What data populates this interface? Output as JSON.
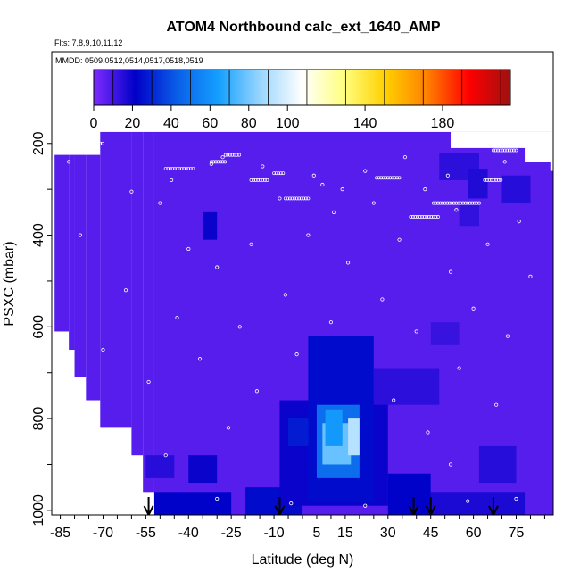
{
  "chart_data": {
    "type": "heatmap",
    "title": "ATOM4 Northbound calc_ext_1640_AMP",
    "subtitle_flights": "Flts: 7,8,9,10,11,12",
    "subtitle_dates": "MMDD: 0509,0512,0514,0517,0518,0519",
    "xlabel": "Latitude (deg N)",
    "ylabel": "PSXC (mbar)",
    "xlim": [
      -88,
      88
    ],
    "ylim": [
      1010,
      0
    ],
    "x_ticks": [
      -85,
      -70,
      -55,
      -40,
      -25,
      -10,
      5,
      15,
      30,
      45,
      60,
      75
    ],
    "x_minor_step": 5,
    "y_ticks": [
      200,
      400,
      600,
      800,
      1000
    ],
    "colorbar": {
      "range": [
        0,
        215
      ],
      "ticks": [
        0,
        20,
        40,
        60,
        80,
        100,
        140,
        180
      ],
      "colors": [
        "#7f2bff",
        "#0000c8",
        "#0a5ee8",
        "#14a0ff",
        "#9ad6ff",
        "#ffffff",
        "#ffff80",
        "#ffd000",
        "#ff8000",
        "#ff0000",
        "#a01010"
      ]
    },
    "background_value": 7,
    "data_top_mbar": 175,
    "blocks": [
      {
        "lat": [
          -55,
          -45
        ],
        "p": [
          880,
          930
        ],
        "v": 15
      },
      {
        "lat": [
          -40,
          -30
        ],
        "p": [
          880,
          940
        ],
        "v": 20
      },
      {
        "lat": [
          -52,
          -25
        ],
        "p": [
          960,
          1010
        ],
        "v": 22
      },
      {
        "lat": [
          -20,
          0
        ],
        "p": [
          950,
          1010
        ],
        "v": 24
      },
      {
        "lat": [
          -35,
          -30
        ],
        "p": [
          350,
          410
        ],
        "v": 20
      },
      {
        "lat": [
          -8,
          30
        ],
        "p": [
          760,
          990
        ],
        "v": 20
      },
      {
        "lat": [
          -5,
          5
        ],
        "p": [
          800,
          860
        ],
        "v": 28
      },
      {
        "lat": [
          2,
          25
        ],
        "p": [
          620,
          980
        ],
        "v": 24
      },
      {
        "lat": [
          5,
          20
        ],
        "p": [
          770,
          930
        ],
        "v": 48
      },
      {
        "lat": [
          7,
          17
        ],
        "p": [
          810,
          900
        ],
        "v": 78
      },
      {
        "lat": [
          16,
          20
        ],
        "p": [
          800,
          880
        ],
        "v": 92
      },
      {
        "lat": [
          8,
          14
        ],
        "p": [
          780,
          860
        ],
        "v": 62
      },
      {
        "lat": [
          25,
          48
        ],
        "p": [
          690,
          770
        ],
        "v": 14
      },
      {
        "lat": [
          30,
          45
        ],
        "p": [
          920,
          1010
        ],
        "v": 22
      },
      {
        "lat": [
          48,
          62
        ],
        "p": [
          220,
          280
        ],
        "v": 14
      },
      {
        "lat": [
          58,
          65
        ],
        "p": [
          255,
          320
        ],
        "v": 16
      },
      {
        "lat": [
          70,
          80
        ],
        "p": [
          270,
          330
        ],
        "v": 15
      },
      {
        "lat": [
          55,
          62
        ],
        "p": [
          330,
          380
        ],
        "v": 13
      },
      {
        "lat": [
          45,
          55
        ],
        "p": [
          590,
          640
        ],
        "v": 12
      },
      {
        "lat": [
          62,
          75
        ],
        "p": [
          860,
          940
        ],
        "v": 15
      },
      {
        "lat": [
          45,
          78
        ],
        "p": [
          960,
          1010
        ],
        "v": 17
      }
    ],
    "markers": [
      {
        "lat": -28,
        "p": 230
      },
      {
        "lat": -32,
        "p": 245
      },
      {
        "lat": -14,
        "p": 250
      },
      {
        "lat": 4,
        "p": 270
      },
      {
        "lat": 7,
        "p": 290
      },
      {
        "lat": 14,
        "p": 300
      },
      {
        "lat": 22,
        "p": 260
      },
      {
        "lat": 36,
        "p": 230
      },
      {
        "lat": 43,
        "p": 300
      },
      {
        "lat": 51,
        "p": 270
      },
      {
        "lat": 71,
        "p": 240
      },
      {
        "lat": -46,
        "p": 280
      },
      {
        "lat": -60,
        "p": 305
      },
      {
        "lat": -50,
        "p": 330
      },
      {
        "lat": -8,
        "p": 320
      },
      {
        "lat": 11,
        "p": 350
      },
      {
        "lat": 25,
        "p": 330
      },
      {
        "lat": 54,
        "p": 345
      },
      {
        "lat": 76,
        "p": 370
      },
      {
        "lat": -78,
        "p": 400
      },
      {
        "lat": -40,
        "p": 430
      },
      {
        "lat": -18,
        "p": 420
      },
      {
        "lat": 2,
        "p": 400
      },
      {
        "lat": 34,
        "p": 410
      },
      {
        "lat": 65,
        "p": 420
      },
      {
        "lat": -30,
        "p": 470
      },
      {
        "lat": 16,
        "p": 460
      },
      {
        "lat": 52,
        "p": 480
      },
      {
        "lat": 80,
        "p": 490
      },
      {
        "lat": -62,
        "p": 520
      },
      {
        "lat": -6,
        "p": 530
      },
      {
        "lat": 28,
        "p": 540
      },
      {
        "lat": 60,
        "p": 560
      },
      {
        "lat": -44,
        "p": 580
      },
      {
        "lat": -22,
        "p": 600
      },
      {
        "lat": 10,
        "p": 590
      },
      {
        "lat": 40,
        "p": 610
      },
      {
        "lat": 72,
        "p": 620
      },
      {
        "lat": -70,
        "p": 650
      },
      {
        "lat": -36,
        "p": 670
      },
      {
        "lat": -2,
        "p": 660
      },
      {
        "lat": 55,
        "p": 690
      },
      {
        "lat": -54,
        "p": 720
      },
      {
        "lat": -16,
        "p": 740
      },
      {
        "lat": 32,
        "p": 760
      },
      {
        "lat": 68,
        "p": 770
      },
      {
        "lat": -26,
        "p": 820
      },
      {
        "lat": 44,
        "p": 830
      },
      {
        "lat": -48,
        "p": 880
      },
      {
        "lat": 52,
        "p": 900
      },
      {
        "lat": -30,
        "p": 975
      },
      {
        "lat": -4,
        "p": 985
      },
      {
        "lat": 22,
        "p": 990
      },
      {
        "lat": 58,
        "p": 980
      },
      {
        "lat": 75,
        "p": 975
      },
      {
        "lat": -86,
        "p": 215
      },
      {
        "lat": -82,
        "p": 240
      }
    ],
    "marker_lines": [
      {
        "lat": [
          -86,
          -80
        ],
        "p": 215
      },
      {
        "lat": [
          -75,
          -70
        ],
        "p": 200
      },
      {
        "lat": [
          -27,
          -22
        ],
        "p": 225
      },
      {
        "lat": [
          -32,
          -27
        ],
        "p": 240
      },
      {
        "lat": [
          -48,
          -38
        ],
        "p": 255
      },
      {
        "lat": [
          -10,
          -6
        ],
        "p": 265
      },
      {
        "lat": [
          -18,
          -12
        ],
        "p": 280
      },
      {
        "lat": [
          -6,
          2
        ],
        "p": 320
      },
      {
        "lat": [
          26,
          34
        ],
        "p": 275
      },
      {
        "lat": [
          46,
          62
        ],
        "p": 330
      },
      {
        "lat": [
          38,
          48
        ],
        "p": 360
      },
      {
        "lat": [
          67,
          75
        ],
        "p": 215
      },
      {
        "lat": [
          64,
          70
        ],
        "p": 280
      }
    ],
    "arrows_lat": [
      -54,
      -8,
      39,
      45,
      67
    ]
  }
}
